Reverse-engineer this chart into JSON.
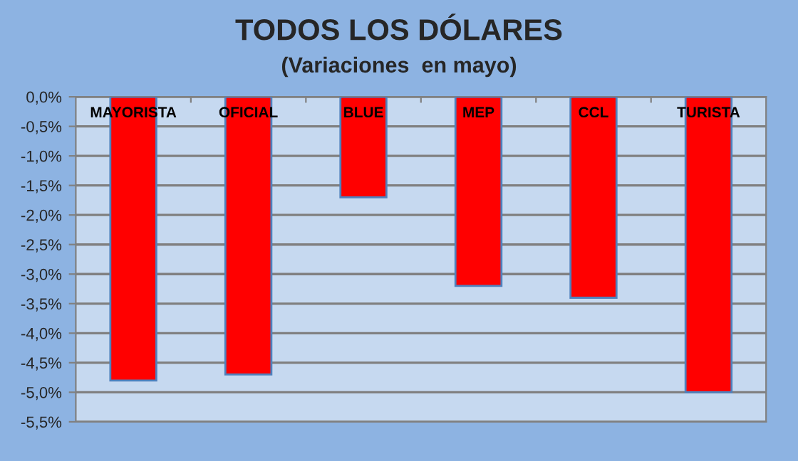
{
  "chart_data": {
    "type": "bar",
    "title": "TODOS LOS DÓLARES",
    "subtitle": "(Variaciones  en mayo)",
    "categories": [
      "MAYORISTA",
      "OFICIAL",
      "BLUE",
      "MEP",
      "CCL",
      "TURISTA"
    ],
    "values": [
      -4.8,
      -4.7,
      -1.7,
      -3.2,
      -3.4,
      -5.0
    ],
    "color": "#ff0000",
    "ylim": [
      -5.5,
      0
    ],
    "yticks": [
      {
        "value": 0,
        "label": "0,0%"
      },
      {
        "value": -0.5,
        "label": "-0,5%"
      },
      {
        "value": -1,
        "label": "-1,0%"
      },
      {
        "value": -1.5,
        "label": "-1,5%"
      },
      {
        "value": -2,
        "label": "-2,0%"
      },
      {
        "value": -2.5,
        "label": "-2,5%"
      },
      {
        "value": -3,
        "label": "-3,0%"
      },
      {
        "value": -3.5,
        "label": "-3,5%"
      },
      {
        "value": -4,
        "label": "-4,0%"
      },
      {
        "value": -4.5,
        "label": "-4,5%"
      },
      {
        "value": -5,
        "label": "-5,0%"
      },
      {
        "value": -5.5,
        "label": "-5,5%"
      }
    ],
    "grid": "y"
  }
}
